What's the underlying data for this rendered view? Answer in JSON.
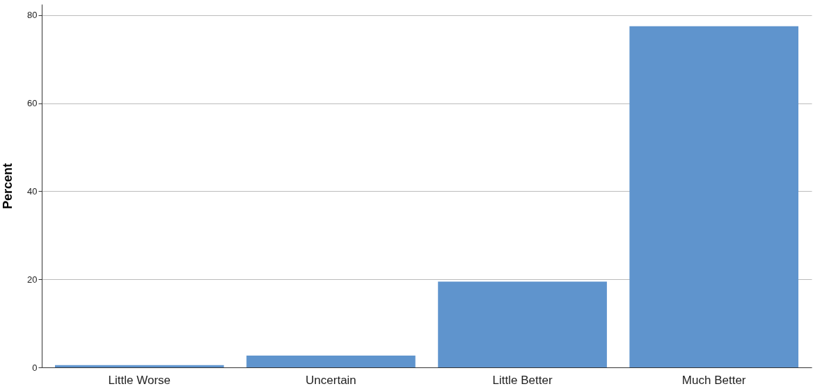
{
  "chart_data": {
    "type": "bar",
    "ylabel": "Percent",
    "categories": [
      "Little Worse",
      "Uncertain",
      "Little Better",
      "Much Better"
    ],
    "values": [
      0.5,
      2.7,
      19.5,
      77.5
    ],
    "color": "#5f94cd",
    "ylim": [
      0,
      82.5
    ],
    "yticks": [
      0,
      20,
      40,
      60,
      80
    ],
    "grid": "y"
  }
}
